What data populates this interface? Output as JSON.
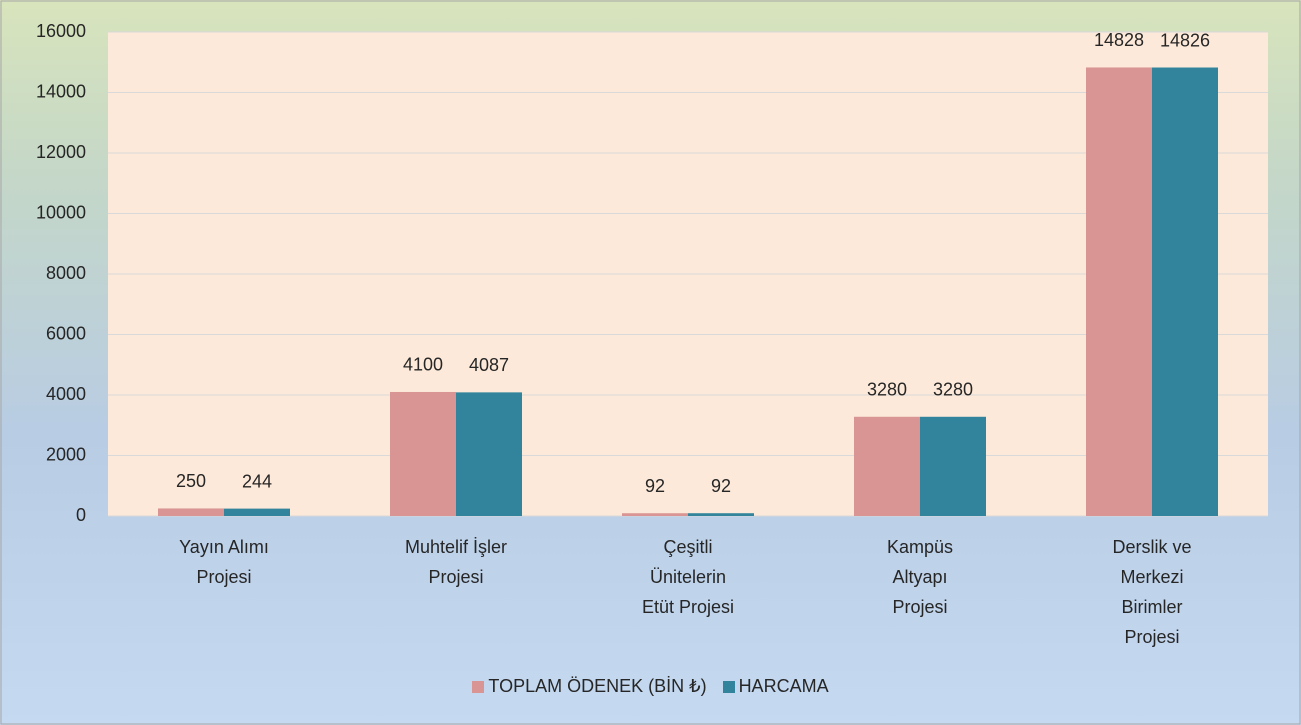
{
  "chart_data": {
    "type": "bar",
    "categories": [
      "Yayın Alımı Projesi",
      "Muhtelif İşler Projesi",
      "Çeşitli Ünitelerin Etüt Projesi",
      "Kampüs Altyapı Projesi",
      "Derslik ve Merkezi Birimler Projesi"
    ],
    "series": [
      {
        "name": "TOPLAM ÖDENEK (BİN ₺)",
        "color": "#d99594",
        "values": [
          250,
          4100,
          92,
          3280,
          14828
        ]
      },
      {
        "name": "HARCAMA",
        "color": "#31849b",
        "values": [
          244,
          4087,
          92,
          3280,
          14826
        ]
      }
    ],
    "ylim": [
      0,
      16000
    ],
    "yticks": [
      0,
      2000,
      4000,
      6000,
      8000,
      10000,
      12000,
      14000,
      16000
    ],
    "grid": true,
    "legend": "bottom"
  }
}
